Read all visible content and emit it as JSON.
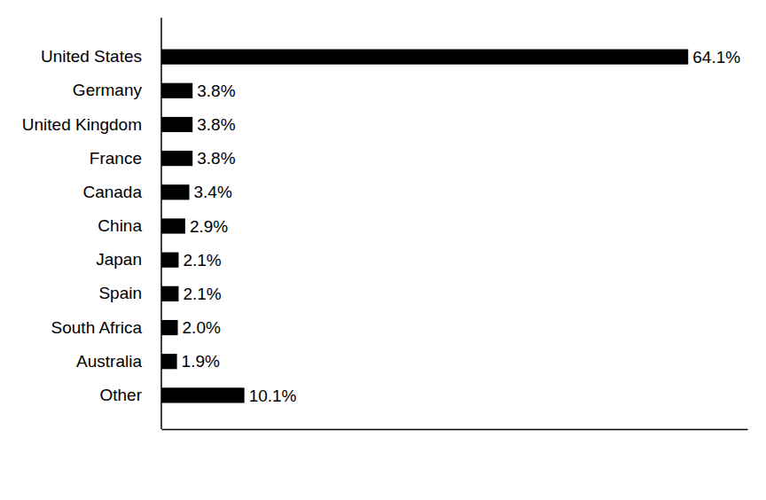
{
  "chart_data": {
    "type": "bar",
    "orientation": "horizontal",
    "categories": [
      "United States",
      "Germany",
      "United Kingdom",
      "France",
      "Canada",
      "China",
      "Japan",
      "Spain",
      "South Africa",
      "Australia",
      "Other"
    ],
    "values": [
      64.1,
      3.8,
      3.8,
      3.8,
      3.4,
      2.9,
      2.1,
      2.1,
      2.0,
      1.9,
      10.1
    ],
    "value_labels": [
      "64.1%",
      "3.8%",
      "3.8%",
      "3.8%",
      "3.4%",
      "2.9%",
      "2.1%",
      "2.1%",
      "2.0%",
      "1.9%",
      "10.1%"
    ],
    "color": "#000000",
    "xlim": [
      0,
      71.3
    ],
    "xticks": [],
    "tick_labels": "y",
    "data_labels": true,
    "grid": false
  }
}
